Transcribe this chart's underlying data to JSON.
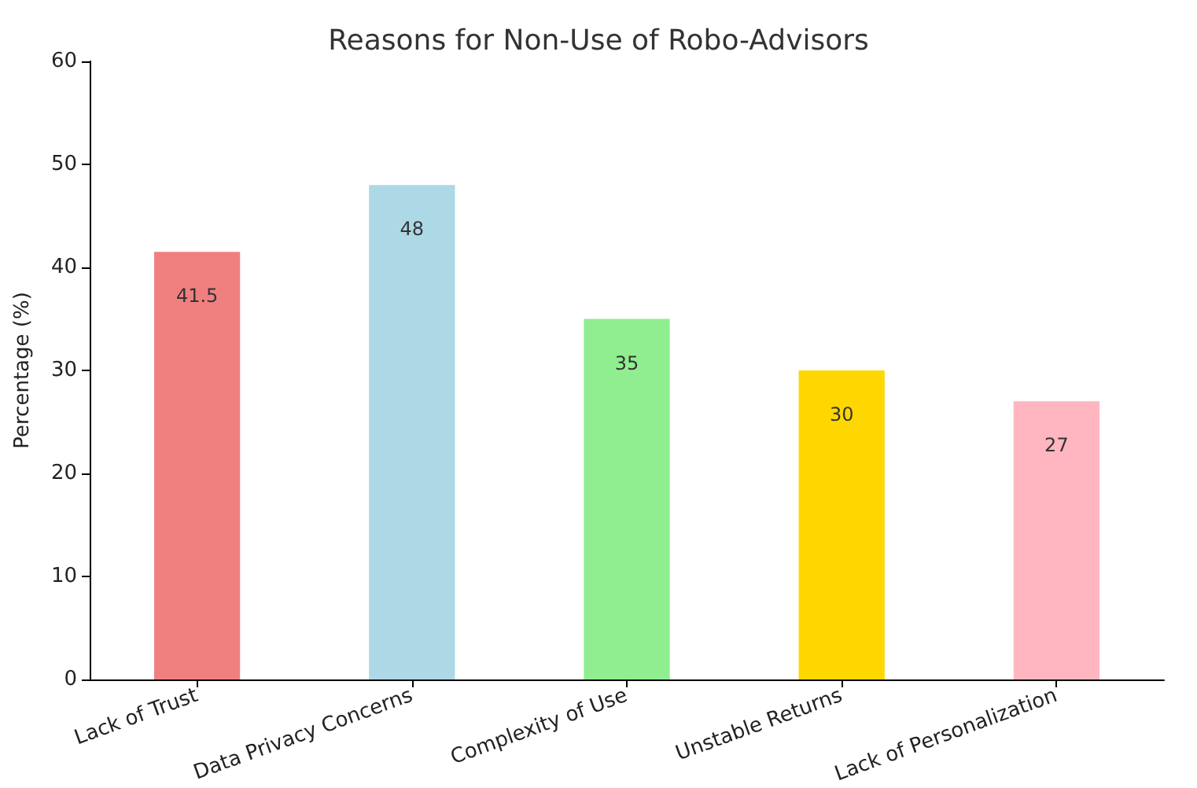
{
  "chart_data": {
    "type": "bar",
    "title": "Reasons for Non-Use of Robo-Advisors",
    "ylabel": "Percentage (%)",
    "categories": [
      "Lack of Trust",
      "Data Privacy Concerns",
      "Complexity of Use",
      "Unstable Returns",
      "Lack of Personalization"
    ],
    "values": [
      41.5,
      48,
      35,
      30,
      27
    ],
    "colors": [
      "#f08080",
      "#add8e6",
      "#90ee90",
      "#ffd700",
      "#ffb6c1"
    ],
    "ylim": [
      0,
      60
    ],
    "yticks": [
      0,
      10,
      20,
      30,
      40,
      50,
      60
    ],
    "grid": false,
    "data_labels": true
  }
}
